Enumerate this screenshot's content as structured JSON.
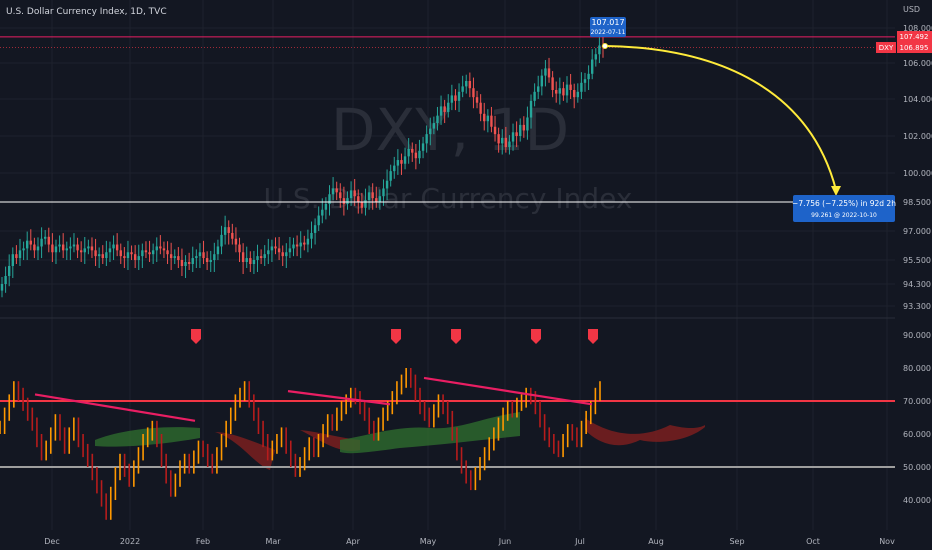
{
  "header": {
    "title": "U.S. Dollar Currency Index, 1D, TVC"
  },
  "axis": {
    "currency": "USD"
  },
  "watermark": {
    "symbol": "DXY, 1D",
    "name": "U.S. Dollar Currency Index"
  },
  "colors": {
    "background": "#131722",
    "up": "#26a69a",
    "down": "#ef5350",
    "hline": "#ffffff",
    "resistance": "#f23645",
    "trendline": "#e91e63",
    "arrow": "#ffeb3b",
    "measure_bg": "#1e63c9"
  },
  "price_tags": {
    "high_label": "107.017",
    "high_date": "2022-07-11",
    "red_level": "107.492",
    "last_symbol": "DXY",
    "last_price": "106.895"
  },
  "measure": {
    "line1": "−7.756 (−7.25%) in 92d 2h",
    "line2": "99.261 @ 2022-10-10"
  },
  "chart_data": [
    {
      "type": "candlestick",
      "title": "U.S. Dollar Currency Index, 1D, TVC",
      "ylabel": "USD",
      "ylim": [
        92.9,
        108.9
      ],
      "price_ticks": [
        "108.000",
        "106.000",
        "104.000",
        "102.000",
        "100.000",
        "98.500",
        "97.000",
        "95.500",
        "94.300",
        "93.300"
      ],
      "xticks": [
        "Dec",
        "2022",
        "Feb",
        "Mar",
        "Apr",
        "May",
        "Jun",
        "Jul",
        "Aug",
        "Sep",
        "Oct",
        "Nov"
      ],
      "horizontal_levels": [
        107.492,
        98.5
      ],
      "last_price": 106.895,
      "series": [
        {
          "name": "DXY",
          "values_close": [
            94.3,
            94.7,
            95.2,
            95.8,
            95.6,
            96.0,
            96.1,
            96.5,
            96.3,
            96.0,
            96.2,
            96.6,
            96.7,
            96.3,
            95.9,
            96.2,
            96.3,
            96.0,
            96.1,
            96.2,
            96.3,
            96.0,
            95.9,
            96.1,
            96.2,
            96.0,
            95.7,
            95.8,
            95.6,
            95.9,
            96.1,
            96.3,
            96.0,
            95.7,
            95.6,
            95.9,
            95.8,
            95.5,
            95.7,
            96.0,
            95.9,
            95.8,
            96.0,
            96.2,
            96.1,
            96.0,
            95.8,
            95.6,
            95.7,
            95.5,
            95.2,
            95.4,
            95.3,
            95.6,
            95.7,
            95.9,
            95.6,
            95.4,
            95.5,
            95.8,
            96.2,
            96.8,
            97.2,
            96.9,
            96.6,
            96.3,
            95.9,
            95.4,
            95.6,
            95.3,
            95.5,
            95.7,
            95.6,
            95.8,
            96.0,
            96.2,
            96.1,
            95.9,
            95.7,
            95.9,
            96.1,
            96.3,
            96.2,
            96.4,
            96.3,
            96.6,
            96.9,
            97.3,
            97.8,
            98.1,
            98.4,
            98.9,
            99.2,
            99.0,
            98.7,
            98.4,
            98.7,
            99.1,
            98.8,
            98.5,
            98.2,
            98.6,
            99.0,
            98.7,
            98.5,
            98.8,
            99.2,
            99.6,
            100.1,
            100.4,
            100.7,
            100.5,
            100.9,
            101.3,
            101.1,
            100.8,
            101.2,
            101.6,
            102.1,
            102.4,
            102.7,
            103.1,
            103.6,
            103.3,
            103.8,
            104.2,
            103.9,
            104.4,
            104.7,
            105.0,
            104.6,
            104.1,
            103.8,
            103.2,
            102.8,
            103.1,
            102.5,
            102.1,
            101.6,
            101.9,
            101.4,
            101.7,
            102.2,
            102.0,
            102.6,
            102.3,
            103.0,
            103.9,
            104.4,
            104.7,
            105.3,
            105.7,
            105.2,
            104.5,
            104.3,
            104.6,
            104.2,
            104.8,
            104.5,
            104.1,
            104.4,
            104.9,
            105.1,
            105.4,
            106.2,
            106.5,
            107.0,
            106.9
          ]
        }
      ]
    },
    {
      "type": "line",
      "title": "",
      "ylim": [
        36,
        92
      ],
      "yticks": [
        "90.000",
        "80.000",
        "70.000",
        "60.000",
        "50.000",
        "40.000"
      ],
      "horizontal_levels": [
        70,
        50
      ],
      "signal_markers": 5,
      "series": [
        {
          "name": "",
          "values": [
            62,
            66,
            70,
            74,
            72,
            69,
            66,
            63,
            58,
            54,
            56,
            60,
            64,
            60,
            56,
            60,
            63,
            58,
            55,
            52,
            48,
            44,
            40,
            36,
            42,
            48,
            52,
            49,
            46,
            50,
            54,
            58,
            60,
            62,
            58,
            52,
            47,
            43,
            46,
            50,
            52,
            50,
            53,
            56,
            55,
            52,
            50,
            54,
            58,
            62,
            66,
            70,
            72,
            74,
            70,
            66,
            62,
            58,
            54,
            56,
            58,
            60,
            56,
            52,
            49,
            51,
            54,
            57,
            55,
            58,
            61,
            64,
            63,
            66,
            68,
            70,
            72,
            71,
            68,
            66,
            62,
            60,
            63,
            66,
            68,
            71,
            74,
            76,
            78,
            76,
            72,
            68,
            66,
            64,
            67,
            70,
            68,
            65,
            60,
            54,
            50,
            47,
            45,
            48,
            51,
            54,
            57,
            60,
            63,
            66,
            68,
            67,
            69,
            70,
            72,
            71,
            68,
            64,
            60,
            58,
            56,
            55,
            58,
            61,
            60,
            58,
            62,
            65,
            68,
            72,
            74
          ]
        }
      ]
    }
  ]
}
